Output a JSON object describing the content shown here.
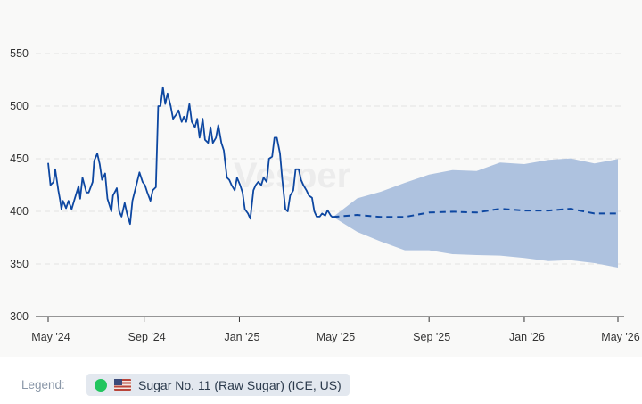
{
  "chart_data": {
    "type": "line",
    "title": "",
    "xlabel": "",
    "ylabel": "",
    "ylim": [
      300,
      550
    ],
    "y_ticks": [
      300,
      350,
      400,
      450,
      500,
      550
    ],
    "x_ticks": [
      {
        "date": "2024-05-01",
        "label": "May '24"
      },
      {
        "date": "2024-09-01",
        "label": "Sep '24"
      },
      {
        "date": "2025-01-01",
        "label": "Jan '25"
      },
      {
        "date": "2025-05-01",
        "label": "May '25"
      },
      {
        "date": "2025-09-01",
        "label": "Sep '25"
      },
      {
        "date": "2026-01-01",
        "label": "Jan '26"
      },
      {
        "date": "2026-05-01",
        "label": "May '26"
      }
    ],
    "xlim": [
      "2024-05-01",
      "2026-05-01"
    ],
    "grid": "horizontal dashed",
    "watermark": "Vesper",
    "series": [
      {
        "name": "Sugar No. 11 (Raw Sugar) (ICE, US)",
        "color": "#0d47a1",
        "style": "solid",
        "points": [
          [
            "2024-05-01",
            446
          ],
          [
            "2024-05-04",
            425
          ],
          [
            "2024-05-08",
            428
          ],
          [
            "2024-05-10",
            440
          ],
          [
            "2024-05-14",
            420
          ],
          [
            "2024-05-16",
            412
          ],
          [
            "2024-05-18",
            402
          ],
          [
            "2024-05-20",
            410
          ],
          [
            "2024-05-24",
            403
          ],
          [
            "2024-05-27",
            410
          ],
          [
            "2024-05-31",
            402
          ],
          [
            "2024-06-04",
            412
          ],
          [
            "2024-06-09",
            424
          ],
          [
            "2024-06-11",
            412
          ],
          [
            "2024-06-14",
            432
          ],
          [
            "2024-06-19",
            418
          ],
          [
            "2024-06-22",
            418
          ],
          [
            "2024-06-27",
            428
          ],
          [
            "2024-06-29",
            448
          ],
          [
            "2024-07-03",
            455
          ],
          [
            "2024-07-06",
            445
          ],
          [
            "2024-07-09",
            430
          ],
          [
            "2024-07-13",
            436
          ],
          [
            "2024-07-16",
            412
          ],
          [
            "2024-07-21",
            400
          ],
          [
            "2024-07-23",
            415
          ],
          [
            "2024-07-28",
            422
          ],
          [
            "2024-07-31",
            400
          ],
          [
            "2024-08-03",
            395
          ],
          [
            "2024-08-07",
            408
          ],
          [
            "2024-08-10",
            398
          ],
          [
            "2024-08-14",
            388
          ],
          [
            "2024-08-17",
            410
          ],
          [
            "2024-08-22",
            425
          ],
          [
            "2024-08-26",
            437
          ],
          [
            "2024-08-30",
            428
          ],
          [
            "2024-09-02",
            425
          ],
          [
            "2024-09-05",
            418
          ],
          [
            "2024-09-09",
            410
          ],
          [
            "2024-09-12",
            420
          ],
          [
            "2024-09-16",
            423
          ],
          [
            "2024-09-19",
            500
          ],
          [
            "2024-09-22",
            500
          ],
          [
            "2024-09-25",
            518
          ],
          [
            "2024-09-28",
            502
          ],
          [
            "2024-10-01",
            512
          ],
          [
            "2024-10-05",
            500
          ],
          [
            "2024-10-08",
            488
          ],
          [
            "2024-10-12",
            492
          ],
          [
            "2024-10-15",
            496
          ],
          [
            "2024-10-19",
            485
          ],
          [
            "2024-10-22",
            490
          ],
          [
            "2024-10-25",
            485
          ],
          [
            "2024-10-29",
            502
          ],
          [
            "2024-11-01",
            485
          ],
          [
            "2024-11-05",
            480
          ],
          [
            "2024-11-08",
            488
          ],
          [
            "2024-11-11",
            470
          ],
          [
            "2024-11-15",
            488
          ],
          [
            "2024-11-18",
            468
          ],
          [
            "2024-11-22",
            465
          ],
          [
            "2024-11-25",
            480
          ],
          [
            "2024-11-28",
            465
          ],
          [
            "2024-12-02",
            470
          ],
          [
            "2024-12-05",
            482
          ],
          [
            "2024-12-09",
            465
          ],
          [
            "2024-12-12",
            458
          ],
          [
            "2024-12-16",
            432
          ],
          [
            "2024-12-19",
            430
          ],
          [
            "2024-12-22",
            425
          ],
          [
            "2024-12-26",
            420
          ],
          [
            "2024-12-29",
            432
          ],
          [
            "2025-01-02",
            425
          ],
          [
            "2025-01-05",
            418
          ],
          [
            "2025-01-08",
            402
          ],
          [
            "2025-01-12",
            398
          ],
          [
            "2025-01-15",
            393
          ],
          [
            "2025-01-19",
            420
          ],
          [
            "2025-01-22",
            425
          ],
          [
            "2025-01-25",
            428
          ],
          [
            "2025-01-29",
            425
          ],
          [
            "2025-02-01",
            432
          ],
          [
            "2025-02-05",
            428
          ],
          [
            "2025-02-08",
            450
          ],
          [
            "2025-02-12",
            452
          ],
          [
            "2025-02-15",
            470
          ],
          [
            "2025-02-18",
            470
          ],
          [
            "2025-02-22",
            455
          ],
          [
            "2025-02-25",
            430
          ],
          [
            "2025-03-01",
            402
          ],
          [
            "2025-03-04",
            400
          ],
          [
            "2025-03-07",
            415
          ],
          [
            "2025-03-11",
            420
          ],
          [
            "2025-03-14",
            440
          ],
          [
            "2025-03-18",
            440
          ],
          [
            "2025-03-21",
            430
          ],
          [
            "2025-03-24",
            425
          ],
          [
            "2025-03-28",
            420
          ],
          [
            "2025-03-31",
            415
          ],
          [
            "2025-04-04",
            413
          ],
          [
            "2025-04-07",
            400
          ],
          [
            "2025-04-10",
            395
          ],
          [
            "2025-04-14",
            395
          ],
          [
            "2025-04-17",
            398
          ],
          [
            "2025-04-21",
            396
          ],
          [
            "2025-04-24",
            401
          ],
          [
            "2025-04-28",
            396
          ],
          [
            "2025-05-01",
            394
          ]
        ]
      },
      {
        "color": "#0d47a1",
        "style": "dashed",
        "points": [
          [
            "2025-05-01",
            394.7
          ],
          [
            "2025-06-01",
            396.6
          ],
          [
            "2025-07-01",
            394.7
          ],
          [
            "2025-08-01",
            394.7
          ],
          [
            "2025-09-01",
            398.9
          ],
          [
            "2025-10-01",
            399.7
          ],
          [
            "2025-11-01",
            398.9
          ],
          [
            "2025-12-01",
            402.5
          ],
          [
            "2026-01-01",
            400.8
          ],
          [
            "2026-02-01",
            400.8
          ],
          [
            "2026-03-01",
            402.5
          ],
          [
            "2026-04-01",
            398.0
          ],
          [
            "2026-05-01",
            398.0
          ]
        ]
      }
    ],
    "band": {
      "color": "#aec2df",
      "dates": [
        "2025-05-01",
        "2025-06-01",
        "2025-07-01",
        "2025-08-01",
        "2025-09-01",
        "2025-10-01",
        "2025-11-01",
        "2025-12-01",
        "2026-01-01",
        "2026-02-01",
        "2026-03-01",
        "2026-04-01",
        "2026-05-01"
      ],
      "upper": [
        394.7,
        412.4,
        418.6,
        427.1,
        435.0,
        439.2,
        438.4,
        446.4,
        444.9,
        448.9,
        450.3,
        445.5,
        449.7
      ],
      "lower": [
        394.7,
        380.5,
        371.4,
        363.0,
        363.0,
        359.3,
        358.5,
        357.9,
        355.7,
        352.8,
        353.6,
        350.8,
        346.6
      ]
    }
  },
  "legend": {
    "label": "Legend:",
    "items": [
      {
        "label": "Sugar No. 11 (Raw Sugar) (ICE, US)",
        "dot_color": "#22c55e",
        "flag_icon": "us-flag-icon"
      }
    ]
  }
}
